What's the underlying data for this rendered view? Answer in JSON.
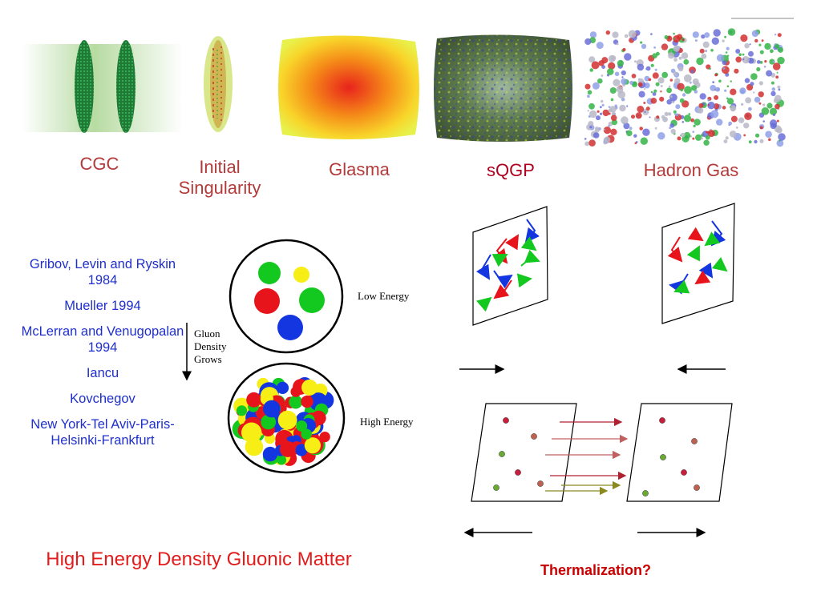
{
  "stages": [
    {
      "label": "CGC"
    },
    {
      "label": "Initial Singularity"
    },
    {
      "label": "Glasma"
    },
    {
      "label": "sQGP"
    },
    {
      "label": "Hadron Gas"
    }
  ],
  "references": [
    "Gribov, Levin and Ryskin 1984",
    "Mueller 1994",
    "McLerran and Venugopalan 1994",
    "Iancu",
    "Kovchegov",
    "New York-Tel Aviv-Paris-Helsinki-Frankfurt"
  ],
  "gluon_diagram": {
    "low_energy": "Low Energy",
    "high_energy": "High Energy",
    "arrow_label": "Gluon Density Grows"
  },
  "bottom_title": "High Energy Density Gluonic Matter",
  "thermalization": "Thermalization?",
  "colors": {
    "red": "#e8141c",
    "green": "#13c81f",
    "blue": "#1436e0",
    "yellow": "#f6ee14",
    "label_red": "#b33a3a",
    "ref_blue": "#1f2fcc"
  }
}
